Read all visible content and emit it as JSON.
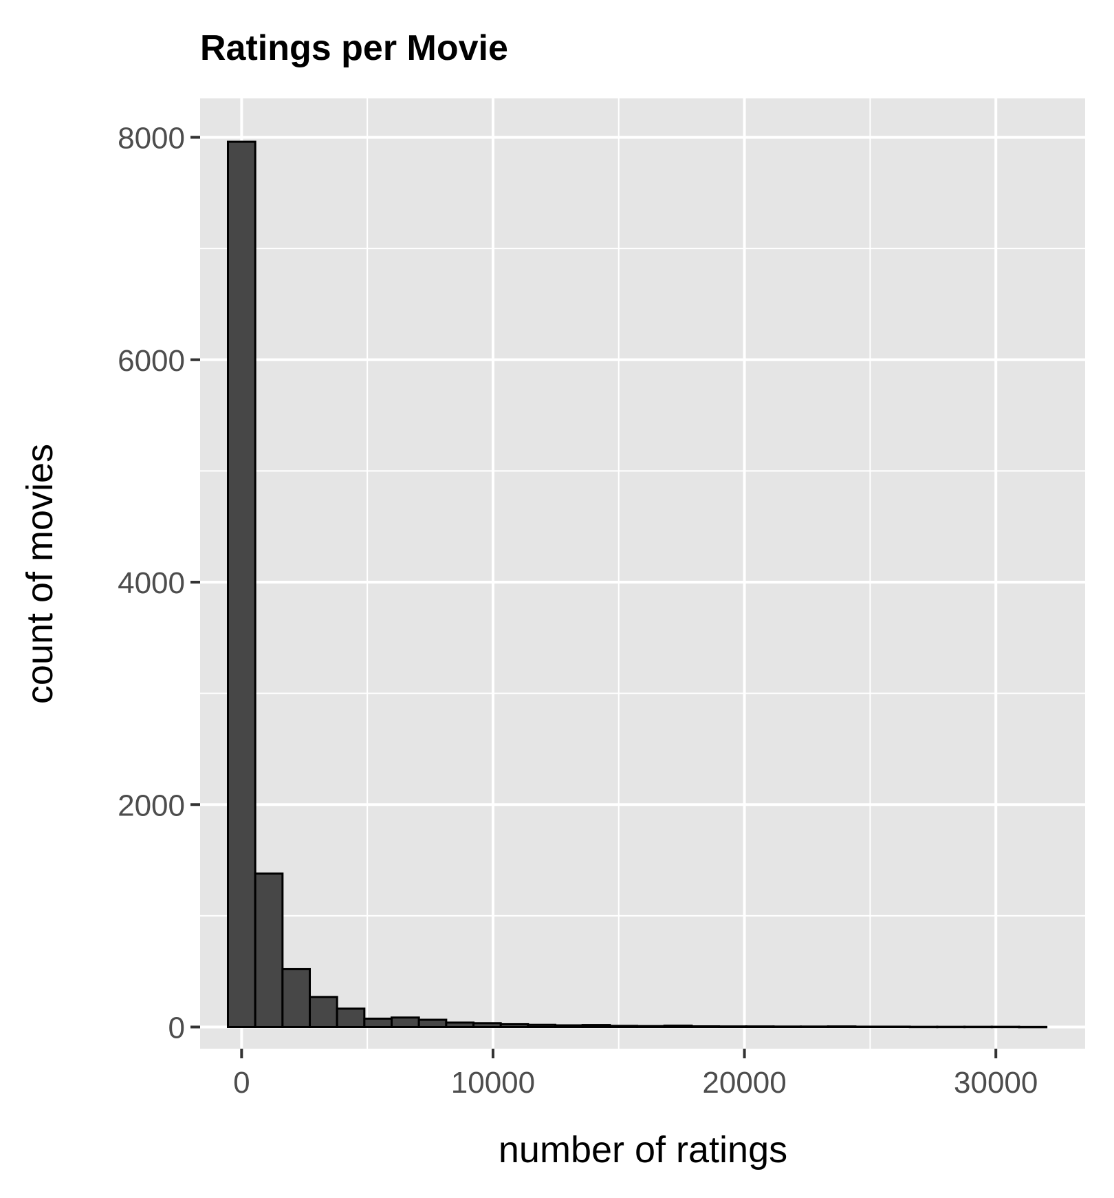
{
  "chart_data": {
    "type": "bar",
    "title": "Ratings per Movie",
    "xlabel": "number of ratings",
    "ylabel": "count of movies",
    "xlim": [
      -1650,
      33550
    ],
    "ylim": [
      -195,
      8350
    ],
    "x_ticks": [
      0,
      10000,
      20000,
      30000
    ],
    "x_tick_labels": [
      "0",
      "10000",
      "20000",
      "30000"
    ],
    "y_ticks": [
      0,
      2000,
      4000,
      6000,
      8000
    ],
    "y_tick_labels": [
      "0",
      "2000",
      "4000",
      "6000",
      "8000"
    ],
    "bin_width": 1085,
    "x": [
      0,
      1085,
      2170,
      3255,
      4340,
      5425,
      6510,
      7595,
      8680,
      9765,
      10850,
      11935,
      13020,
      14105,
      15190,
      16275,
      17360,
      18445,
      19530,
      20615,
      21700,
      22785,
      23870,
      24955,
      26040,
      27125,
      28210,
      29295,
      30380,
      31465
    ],
    "values": [
      7960,
      1380,
      520,
      270,
      165,
      75,
      85,
      65,
      40,
      35,
      25,
      20,
      15,
      18,
      10,
      8,
      12,
      6,
      5,
      5,
      4,
      4,
      5,
      3,
      3,
      2,
      2,
      2,
      2,
      1
    ],
    "grid": true,
    "colors": {
      "panel": "#e5e5e5",
      "grid": "#ffffff",
      "bar_fill": "#474747",
      "bar_stroke": "#000000",
      "tick": "#333333"
    }
  }
}
